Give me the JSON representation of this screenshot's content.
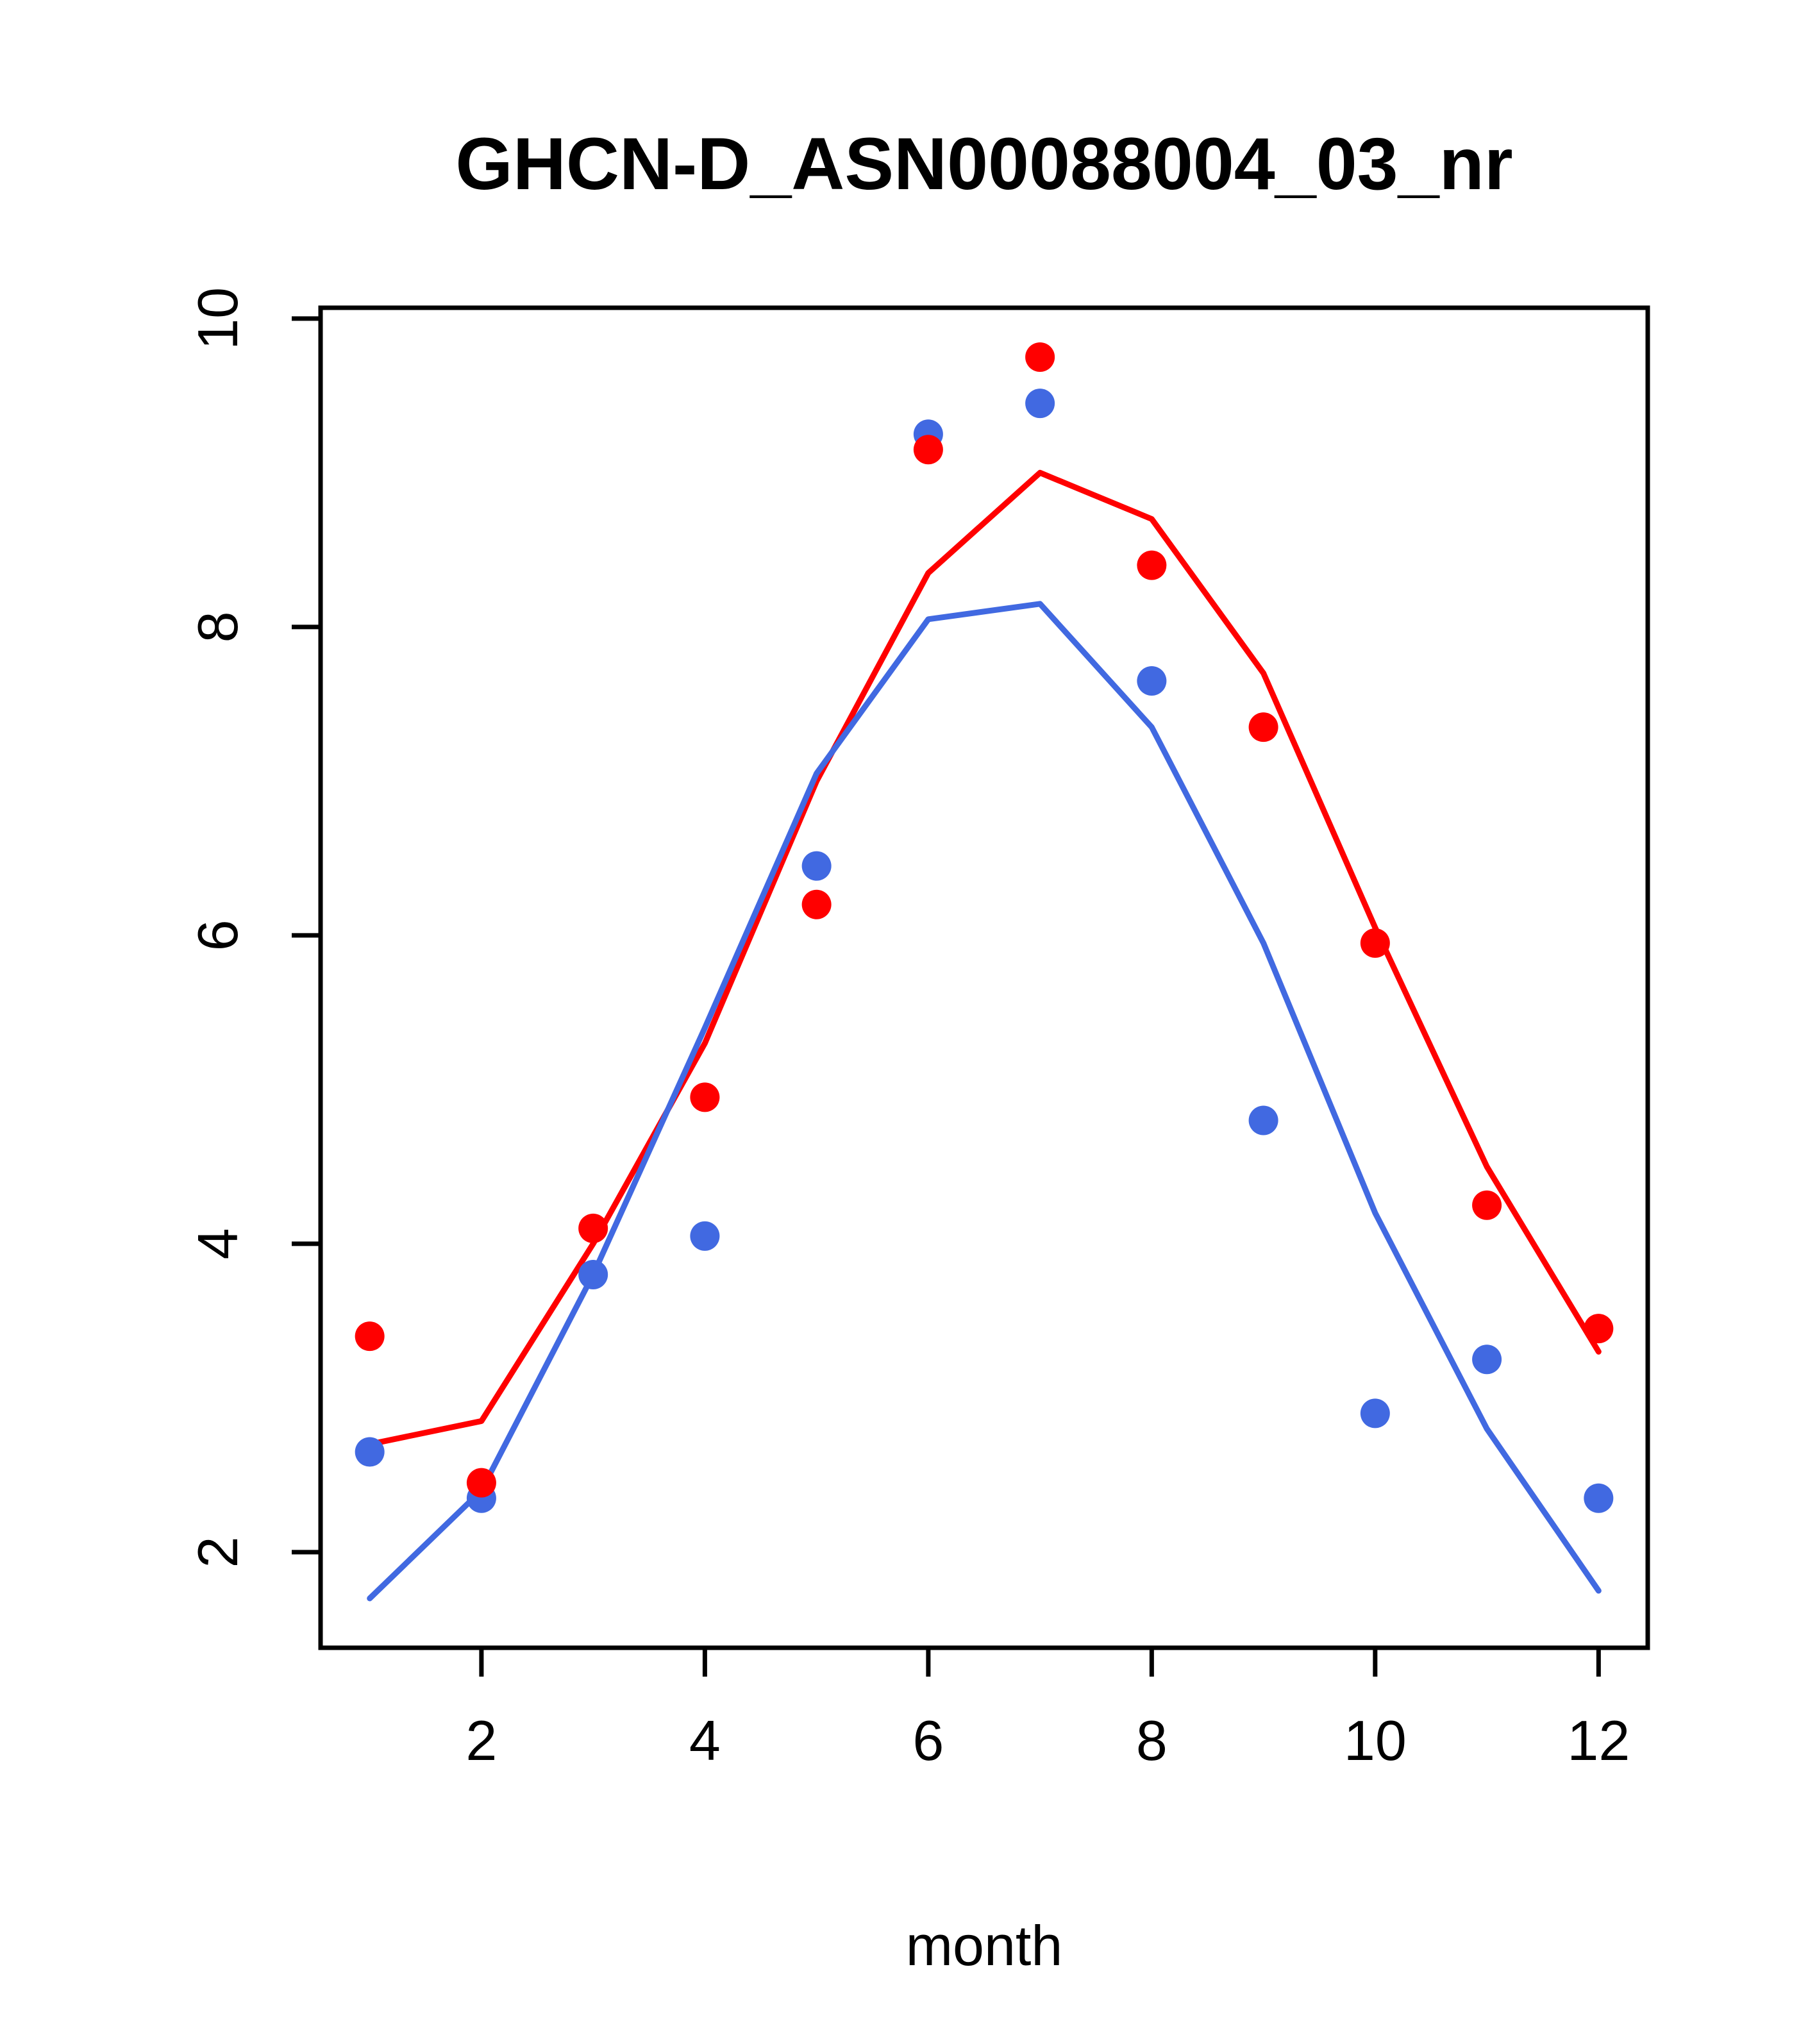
{
  "chart_data": {
    "type": "line",
    "title": "GHCN-D_ASN00088004_03_nr",
    "xlabel": "month",
    "ylabel": "",
    "x": [
      1,
      2,
      3,
      4,
      5,
      6,
      7,
      8,
      9,
      10,
      11,
      12
    ],
    "xlim": [
      0.56,
      12.44
    ],
    "ylim": [
      1.38,
      10.07
    ],
    "xticks": [
      2,
      4,
      6,
      8,
      10,
      12
    ],
    "yticks": [
      2,
      4,
      6,
      8,
      10
    ],
    "grid": false,
    "legend": "none",
    "colors": {
      "red": "#FF0000",
      "blue": "#4169E1",
      "axis": "#000000",
      "background": "#FFFFFF"
    },
    "series": [
      {
        "name": "red-line",
        "type": "line",
        "color_key": "red",
        "values": [
          2.7,
          2.85,
          4.0,
          5.3,
          7.0,
          8.35,
          9.0,
          8.7,
          7.7,
          6.05,
          4.5,
          3.3
        ]
      },
      {
        "name": "blue-line",
        "type": "line",
        "color_key": "blue",
        "values": [
          1.7,
          2.4,
          3.8,
          5.4,
          7.05,
          8.05,
          8.15,
          7.35,
          5.95,
          4.2,
          2.8,
          1.75
        ]
      },
      {
        "name": "blue-points",
        "type": "scatter",
        "color_key": "blue",
        "values": [
          2.65,
          2.35,
          3.8,
          4.05,
          6.45,
          9.25,
          9.45,
          7.65,
          4.8,
          2.9,
          3.25,
          2.35
        ]
      },
      {
        "name": "red-points",
        "type": "scatter",
        "color_key": "red",
        "values": [
          3.4,
          2.45,
          4.1,
          4.95,
          6.2,
          9.15,
          9.75,
          8.4,
          7.35,
          5.95,
          4.25,
          3.45
        ]
      }
    ]
  }
}
